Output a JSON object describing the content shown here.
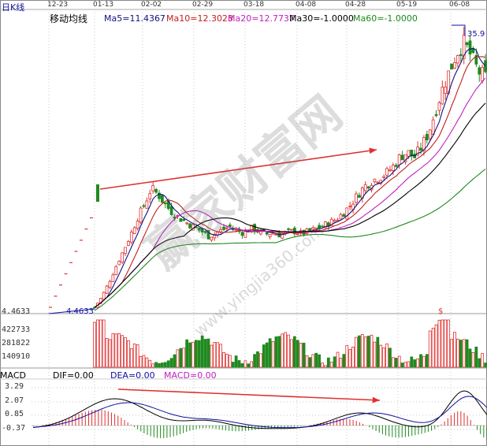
{
  "header": {
    "period_label": "日K线",
    "indicator_name": "移动均线",
    "ma5": "Ma5=11.4367",
    "ma10": "Ma10=12.3023",
    "ma20": "Ma20=12.7737",
    "ma30": "Ma30=-1.0000",
    "ma60": "Ma60=-1.0000"
  },
  "colors": {
    "up": "#e03030",
    "down": "#1f8a1f",
    "ma5": "#101080",
    "ma10": "#c02020",
    "ma20": "#c020c0",
    "ma30": "#000000",
    "ma60": "#1f8a1f",
    "arrow": "#e03030",
    "grid": "#c8c8c8"
  },
  "dates": [
    "12-23",
    "01-13",
    "02-02",
    "02-29",
    "03-18",
    "04-08",
    "04-28",
    "05-19",
    "06-08"
  ],
  "price_labels": {
    "high": "35.9",
    "low": "4.4633",
    "low_left": "4.4633",
    "volume_marker": "$"
  },
  "volume_axis": [
    "422733",
    "281822",
    "140910"
  ],
  "macd": {
    "label": "MACD",
    "dif": "DIF=0.00",
    "dea": "DEA=0.00",
    "macd": "MACD=0.00",
    "axis": [
      "3.29",
      "2.07",
      "0.85",
      "-0.37"
    ]
  },
  "watermark": {
    "main": "赢家财富网",
    "url": "www.yingjia360.com"
  },
  "chart_data": [
    {
      "type": "candlestick",
      "title": "移动均线",
      "x_start": "12-23",
      "x_end": "06-08",
      "ylim": [
        4.4633,
        35.9
      ],
      "price_path": [
        4.46,
        5.6,
        7.2,
        9.0,
        10.7,
        12.4,
        14.4,
        15.9,
        17.8,
        17.0,
        15.9,
        15.0,
        14.4,
        13.9,
        13.4,
        13.0,
        12.4,
        12.7,
        13.1,
        13.5,
        13.0,
        12.8,
        13.3,
        13.0,
        12.6,
        12.8,
        12.6,
        12.8,
        13.0,
        12.7,
        12.9,
        13.2,
        13.5,
        13.9,
        14.3,
        15.0,
        15.9,
        17.0,
        18.0,
        18.6,
        19.0,
        19.4,
        20.2,
        21.3,
        21.8,
        21.2,
        22.4,
        24.0,
        26.5,
        29.0,
        31.0,
        33.0,
        34.0,
        32.5,
        30.8,
        30.2
      ],
      "volume_max": 422733,
      "annotations": [
        {
          "text": "35.9",
          "meaning": "period high"
        },
        {
          "text": "4.4633",
          "meaning": "period low"
        }
      ]
    },
    {
      "type": "bar",
      "title": "MACD",
      "ylim": [
        -0.37,
        3.29
      ],
      "ticks": [
        3.29,
        2.07,
        0.85,
        -0.37
      ]
    }
  ]
}
